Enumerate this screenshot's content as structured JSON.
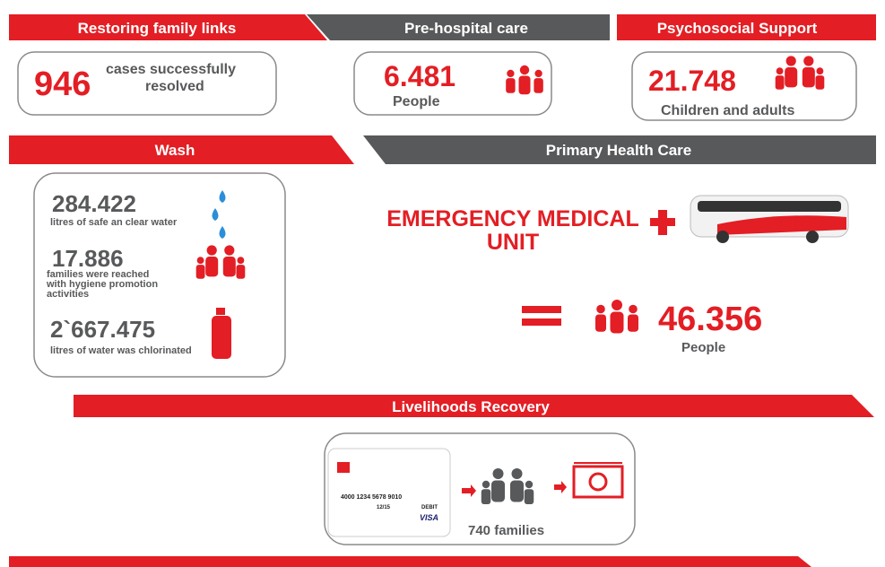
{
  "restoring_family_links": {
    "title": "Restoring family links",
    "number": "946",
    "lines": [
      "cases successfully",
      "resolved"
    ]
  },
  "pre_hospital_care": {
    "title": "Pre-hospital care",
    "number": "6.481",
    "text": "People"
  },
  "psychosocial_support": {
    "title": "Psychosocial Support",
    "number": "21.748",
    "text": "Children and adults"
  },
  "wash": {
    "title": "Wash",
    "items": [
      {
        "number": "284.422",
        "lines": [
          "litres of safe an clear water"
        ]
      },
      {
        "number": "17.886",
        "lines": [
          "families were reached",
          "with hygiene promotion",
          "activities"
        ]
      },
      {
        "number": "2`667.475",
        "lines": [
          "litres of water was chlorinated"
        ]
      }
    ]
  },
  "primary_health_care": {
    "title": "Primary Health Care",
    "unit_lines": [
      "EMERGENCY MEDICAL",
      "UNIT"
    ],
    "number": "46.356",
    "text": "People"
  },
  "livelihoods_recovery": {
    "title": "Livelihoods Recovery",
    "card": {
      "number": "4000 1234 5678 9010",
      "expiry": "12/15",
      "kind": "DEBIT",
      "brand": "VISA"
    },
    "text": "740 families"
  }
}
